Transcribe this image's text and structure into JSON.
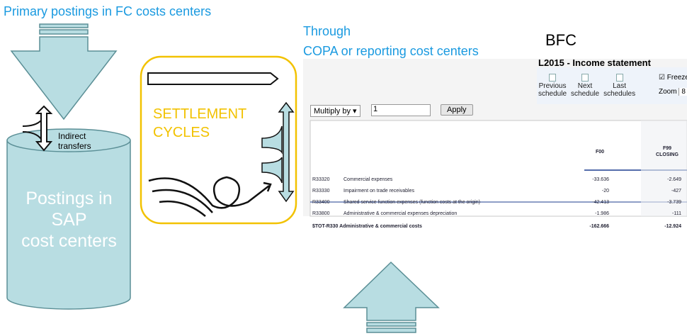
{
  "header": {
    "title": "Primary postings in FC costs centers",
    "through": "Through",
    "copa": "COPA or reporting cost centers",
    "bfc": "BFC"
  },
  "cylinder": {
    "label_lines": [
      "Postings in",
      "SAP",
      "cost centers"
    ],
    "transfer_lines": [
      "Indirect",
      "transfers"
    ]
  },
  "settlement": {
    "lines": [
      "SETTLEMENT",
      "CYCLES"
    ]
  },
  "report": {
    "title": "L2015 - Income statement",
    "toolbar": [
      {
        "lines": [
          "Previous",
          "schedule"
        ]
      },
      {
        "lines": [
          "Next",
          "schedule"
        ]
      },
      {
        "lines": [
          "Last",
          "schedules"
        ]
      }
    ],
    "freeze": "Freeze",
    "zoom": "Zoom",
    "zoom_value": "8",
    "multiply_label": "Multiply by",
    "multiply_value": "1",
    "apply": "Apply",
    "columns": [
      {
        "lines": [
          "F00"
        ]
      },
      {
        "lines": [
          "F99",
          "CLOSING"
        ]
      }
    ],
    "rows": [
      {
        "code": "R33320",
        "label": "Commercial expenses",
        "f00": "-33.636",
        "f99": "-2.649"
      },
      {
        "code": "R33330",
        "label": "Impairment on trade receivables",
        "f00": "-20",
        "f99": "-427"
      },
      {
        "code": "R33400",
        "label": "Shared service function expenses (function costs at the origin)",
        "f00": "-42.413",
        "f99": "-3.739"
      },
      {
        "code": "R33800",
        "label": "Administrative & commercial expenses depreciation",
        "f00": "-1.986",
        "f99": "-111"
      },
      {
        "code": "$TOT-R330",
        "label": "Administrative & commercial costs",
        "f00": "-162.666",
        "f99": "-12.924"
      }
    ]
  }
}
